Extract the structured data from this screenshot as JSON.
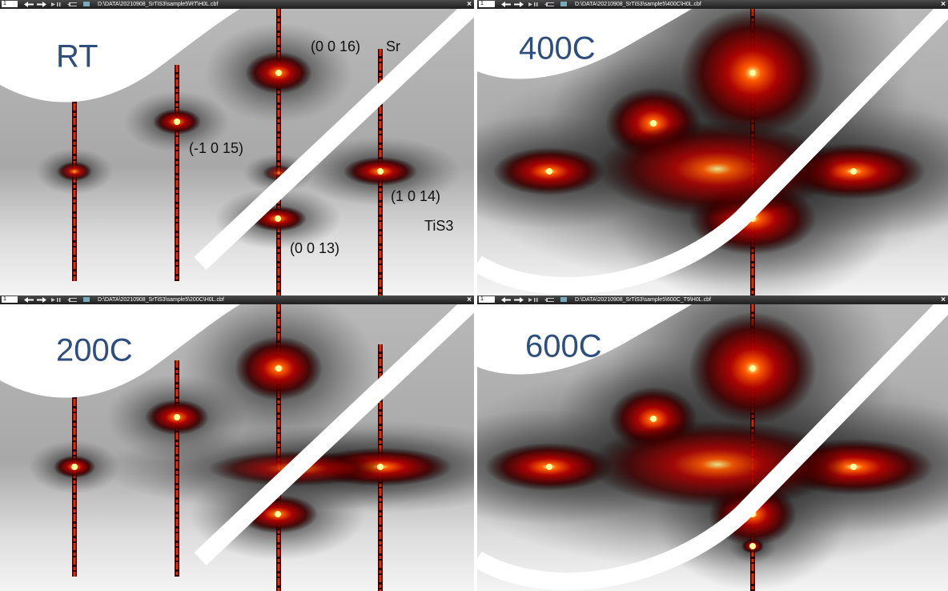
{
  "panels": [
    {
      "toolbar": {
        "index": "1",
        "path": "D:\\DATA\\20210908_SrTiS3\\sample5\\RT\\H0L.cbf",
        "close": "×"
      },
      "label": "RT",
      "annotations": [
        "(0 0 16)",
        "Sr",
        "(-1 0 15)",
        "(1 0 14)",
        "TiS3",
        "(0 0 13)"
      ]
    },
    {
      "toolbar": {
        "index": "1",
        "path": "D:\\DATA\\20210908_SrTiS3\\sample5\\400C\\H0L.cbf",
        "close": "×"
      },
      "label": "400C",
      "annotations": []
    },
    {
      "toolbar": {
        "index": "1",
        "path": "D:\\DATA\\20210908_SrTiS3\\sample5\\200C\\H0L.cbf",
        "close": "×"
      },
      "label": "200C",
      "annotations": []
    },
    {
      "toolbar": {
        "index": "1",
        "path": "D:\\DATA\\20210908_SrTiS3\\sample5\\600C_T9\\H0L.cbf",
        "close": "×"
      },
      "label": "600C",
      "annotations": []
    }
  ]
}
